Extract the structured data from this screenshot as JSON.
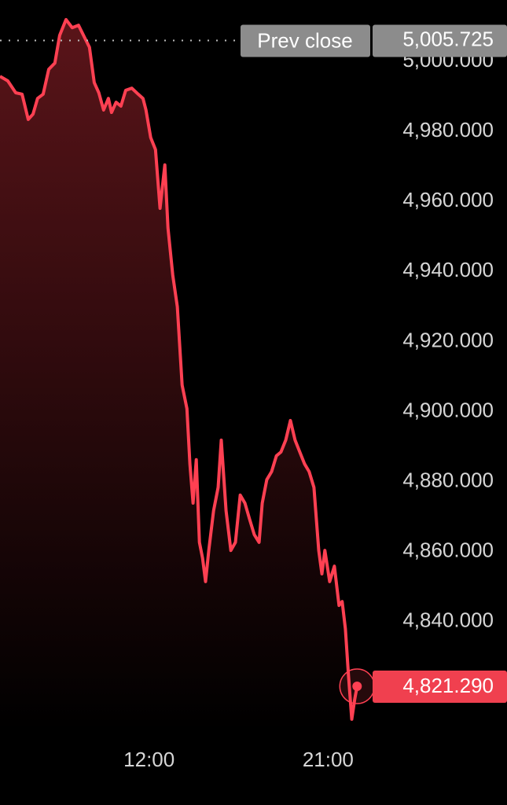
{
  "chart_data": {
    "type": "line",
    "x": [
      4.5,
      4.89,
      5.29,
      5.61,
      5.92,
      6.16,
      6.39,
      6.67,
      6.95,
      7.26,
      7.5,
      7.82,
      8.13,
      8.45,
      8.76,
      9.0,
      9.24,
      9.47,
      9.71,
      9.95,
      10.11,
      10.34,
      10.58,
      10.82,
      11.13,
      11.45,
      11.69,
      11.84,
      12.08,
      12.32,
      12.55,
      12.79,
      12.95,
      13.19,
      13.42,
      13.66,
      13.9,
      14.05,
      14.21,
      14.37,
      14.53,
      14.69,
      14.84,
      15.0,
      15.24,
      15.47,
      15.63,
      15.87,
      16.11,
      16.34,
      16.58,
      16.82,
      17.05,
      17.29,
      17.53,
      17.69,
      17.92,
      18.16,
      18.4,
      18.63,
      18.87,
      19.11,
      19.34,
      19.58,
      19.82,
      20.05,
      20.29,
      20.53,
      20.69,
      20.84,
      21.08,
      21.32,
      21.55,
      21.71,
      21.87,
      22.03,
      22.19,
      22.34,
      22.46
    ],
    "series": [
      {
        "color": "#ff4052",
        "values": [
          4995.5,
          4994.2,
          4990.8,
          4990.4,
          4983.2,
          4984.7,
          4989.2,
          4990.4,
          4997.5,
          4999.3,
          5007.2,
          5011.7,
          5009.4,
          5010.1,
          5006.5,
          5003.8,
          4993.7,
          4990.8,
          4985.9,
          4989.2,
          4985.2,
          4988.1,
          4987.0,
          4991.5,
          4992.1,
          4990.4,
          4989.2,
          4985.9,
          4978.0,
          4974.6,
          4957.8,
          4970.2,
          4952.2,
          4938.7,
          4929.7,
          4907.3,
          4900.6,
          4884.8,
          4873.6,
          4886.0,
          4862.4,
          4857.9,
          4851.2,
          4860.1,
          4871.4,
          4878.1,
          4891.6,
          4871.4,
          4860.1,
          4862.4,
          4875.9,
          4873.6,
          4869.1,
          4864.6,
          4862.4,
          4873.6,
          4880.3,
          4882.6,
          4887.1,
          4888.2,
          4891.6,
          4897.2,
          4891.6,
          4888.2,
          4884.8,
          4882.6,
          4878.1,
          4860.1,
          4853.4,
          4860.1,
          4851.2,
          4855.6,
          4844.4,
          4845.5,
          4837.7,
          4824.2,
          4811.9,
          4817.5,
          4821.29
        ]
      }
    ],
    "last_value_label": "4,821.290",
    "prev_close": {
      "label": "Prev close",
      "value": 5005.725,
      "value_label": "5,005.725"
    },
    "xlim": [
      4.5,
      30
    ],
    "xticks": [
      {
        "value": 12,
        "label": "12:00"
      },
      {
        "value": 21,
        "label": "21:00"
      }
    ],
    "ylim": [
      4808.5,
      5017.3
    ],
    "yticks": [
      {
        "value": 5000,
        "label": "5,000.000"
      },
      {
        "value": 4980,
        "label": "4,980.000"
      },
      {
        "value": 4960,
        "label": "4,960.000"
      },
      {
        "value": 4940,
        "label": "4,940.000"
      },
      {
        "value": 4920,
        "label": "4,920.000"
      },
      {
        "value": 4900,
        "label": "4,900.000"
      },
      {
        "value": 4880,
        "label": "4,880.000"
      },
      {
        "value": 4860,
        "label": "4,860.000"
      },
      {
        "value": 4840,
        "label": "4,840.000"
      }
    ]
  }
}
